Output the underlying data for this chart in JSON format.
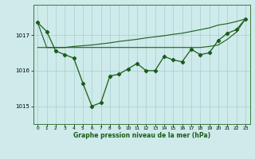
{
  "bg_color": "#ceeaea",
  "grid_color": "#aacece",
  "line_color": "#1a5c1a",
  "xlabel": "Graphe pression niveau de la mer (hPa)",
  "ylim": [
    1014.5,
    1017.85
  ],
  "xlim": [
    -0.5,
    23.5
  ],
  "yticks": [
    1015,
    1016,
    1017
  ],
  "xticks": [
    0,
    1,
    2,
    3,
    4,
    5,
    6,
    7,
    8,
    9,
    10,
    11,
    12,
    13,
    14,
    15,
    16,
    17,
    18,
    19,
    20,
    21,
    22,
    23
  ],
  "series_main": [
    1017.35,
    1017.1,
    1016.55,
    1016.45,
    1016.35,
    1015.65,
    1015.0,
    1015.1,
    1015.85,
    1015.9,
    1016.05,
    1016.2,
    1016.0,
    1016.0,
    1016.4,
    1016.3,
    1016.25,
    1016.6,
    1016.45,
    1016.5,
    1016.85,
    1017.05,
    1017.15,
    1017.45
  ],
  "series_line_top": [
    1017.35,
    1016.65,
    1016.65,
    1016.65,
    1016.68,
    1016.7,
    1016.72,
    1016.75,
    1016.78,
    1016.82,
    1016.85,
    1016.88,
    1016.92,
    1016.95,
    1016.98,
    1017.02,
    1017.05,
    1017.1,
    1017.15,
    1017.2,
    1017.28,
    1017.32,
    1017.38,
    1017.45
  ],
  "series_line_mid": [
    1016.65,
    1016.65,
    1016.65,
    1016.65,
    1016.65,
    1016.65,
    1016.65,
    1016.65,
    1016.65,
    1016.65,
    1016.65,
    1016.65,
    1016.65,
    1016.65,
    1016.65,
    1016.65,
    1016.65,
    1016.65,
    1016.65,
    1016.68,
    1016.72,
    1016.88,
    1017.08,
    1017.45
  ]
}
